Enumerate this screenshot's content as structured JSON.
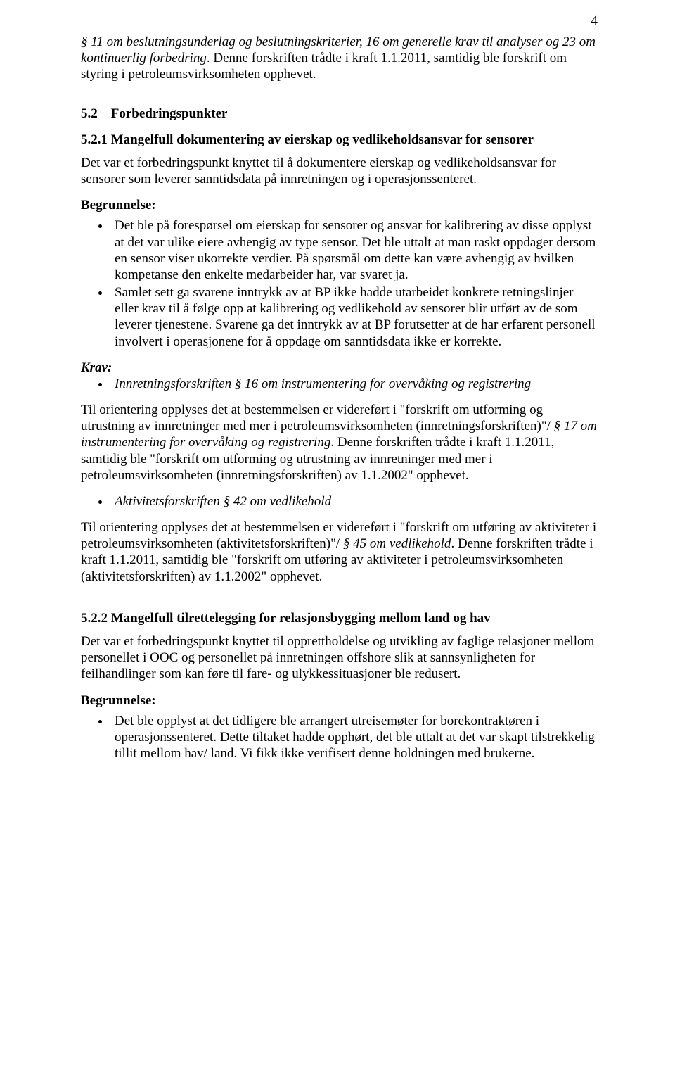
{
  "pageNumber": "4",
  "intro": {
    "p1a": "§ 11 om beslutningsunderlag og beslutningskriterier, 16 om generelle krav til analyser og 23 om kontinuerlig forbedring",
    "p1b": ". Denne forskriften trådte i kraft 1.1.2011, samtidig ble forskrift om styring i petroleumsvirksomheten opphevet."
  },
  "section52": {
    "heading": "5.2 Forbedringspunkter",
    "sub521": {
      "heading": "5.2.1 Mangelfull dokumentering av eierskap og vedlikeholdsansvar for sensorer",
      "lead": "Det var et forbedringspunkt knyttet til å dokumentere eierskap og vedlikeholdsansvar for sensorer som leverer sanntidsdata på innretningen og i operasjonssenteret.",
      "begrunnelseLabel": "Begrunnelse:",
      "bullets": [
        "Det ble på forespørsel om eierskap for sensorer og ansvar for kalibrering av disse opplyst at det var ulike eiere avhengig av type sensor. Det ble uttalt at man raskt oppdager dersom en sensor viser ukorrekte verdier. På spørsmål om dette kan være avhengig av hvilken kompetanse den enkelte medarbeider har, var svaret ja.",
        "Samlet sett ga svarene inntrykk av at BP ikke hadde utarbeidet konkrete retningslinjer eller krav til å følge opp at kalibrering og vedlikehold av sensorer blir utført av de som leverer tjenestene. Svarene ga det inntrykk av at BP forutsetter at de har erfarent personell involvert i operasjonene for å oppdage om sanntidsdata ikke er korrekte."
      ],
      "kravLabel": "Krav:",
      "kravItem1": "Innretningsforskriften § 16 om instrumentering for overvåking og registrering",
      "orient1a": "Til orientering opplyses det at bestemmelsen er videreført i \"forskrift om utforming og utrustning av innretninger med mer i petroleumsvirksomheten (innretningsforskriften)\"/",
      "orient1b": "§ 17 om instrumentering for overvåking og registrering",
      "orient1c": ". Denne forskriften trådte i kraft 1.1.2011, samtidig ble \"forskrift om utforming og utrustning av innretninger med mer i petroleumsvirksomheten (innretningsforskriften) av 1.1.2002\" opphevet.",
      "kravItem2": "Aktivitetsforskriften § 42 om vedlikehold",
      "orient2a": "Til orientering opplyses det at bestemmelsen er videreført i \"forskrift om utføring av aktiviteter i petroleumsvirksomheten (aktivitetsforskriften)\"/ ",
      "orient2b": "§ 45 om vedlikehold",
      "orient2c": ". Denne forskriften trådte i kraft 1.1.2011, samtidig ble \"forskrift om utføring av aktiviteter i petroleumsvirksomheten (aktivitetsforskriften) av 1.1.2002\" opphevet."
    },
    "sub522": {
      "heading": "5.2.2 Mangelfull tilrettelegging for relasjonsbygging mellom land og hav",
      "lead": "Det var et forbedringspunkt knyttet til opprettholdelse og utvikling av faglige relasjoner mellom personellet i OOC og personellet på innretningen offshore slik at sannsynligheten for feilhandlinger som kan føre til fare- og ulykkessituasjoner ble redusert.",
      "begrunnelseLabel": "Begrunnelse:",
      "bullets": [
        "Det ble opplyst at det tidligere ble arrangert utreisemøter for borekontraktøren i operasjonssenteret. Dette tiltaket hadde opphørt, det ble uttalt at det var skapt tilstrekkelig tillit mellom hav/ land. Vi fikk ikke verifisert denne holdningen med brukerne."
      ]
    }
  }
}
